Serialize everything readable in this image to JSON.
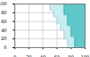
{
  "chart_data": {
    "type": "area",
    "x": [
      0,
      45,
      50,
      55,
      60,
      65,
      70,
      75,
      80,
      85,
      100
    ],
    "series": [
      {
        "color": "#c6eef2",
        "values": [
          100,
          100,
          85,
          70,
          55,
          40,
          20,
          0,
          0,
          0,
          0
        ]
      },
      {
        "color": "#5ec8cb",
        "values": [
          100,
          100,
          100,
          100,
          100,
          100,
          75,
          50,
          25,
          0,
          0
        ]
      }
    ],
    "xlim": [
      0,
      100
    ],
    "xticks": [
      0,
      20,
      40,
      60,
      80,
      100
    ],
    "ylim": [
      0,
      100
    ],
    "yticks": [
      0,
      20,
      40,
      60,
      80,
      100
    ],
    "grid": true
  }
}
